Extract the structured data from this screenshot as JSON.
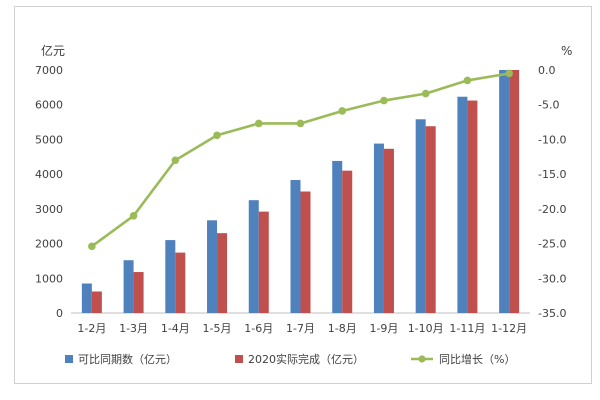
{
  "chart_data": {
    "type": "bar",
    "title": "",
    "left_unit": "亿元",
    "right_unit": "%",
    "categories": [
      "1-2月",
      "1-3月",
      "1-4月",
      "1-5月",
      "1-6月",
      "1-7月",
      "1-8月",
      "1-9月",
      "1-10月",
      "1-11月",
      "1-12月"
    ],
    "y_left": {
      "min": 0,
      "max": 7000,
      "step": 1000,
      "ticks": [
        "0",
        "1000",
        "2000",
        "3000",
        "4000",
        "5000",
        "6000",
        "7000"
      ]
    },
    "y_right": {
      "min": -35,
      "max": 0,
      "step": 5,
      "ticks": [
        "0.0",
        "-5.0",
        "-10.0",
        "-15.0",
        "-20.0",
        "-25.0",
        "-30.0",
        "-35.0"
      ]
    },
    "series": [
      {
        "name": "可比同期数（亿元）",
        "type": "bar",
        "axis": "left",
        "color": "#4f81bd",
        "values": [
          850,
          1520,
          2100,
          2670,
          3250,
          3830,
          4380,
          4880,
          5580,
          6230,
          7000
        ]
      },
      {
        "name": "2020实际完成（亿元）",
        "type": "bar",
        "axis": "left",
        "color": "#c0504d",
        "values": [
          620,
          1180,
          1740,
          2300,
          2920,
          3500,
          4100,
          4730,
          5380,
          6120,
          7000
        ]
      },
      {
        "name": "同比增长（%）",
        "type": "line",
        "axis": "right",
        "color": "#9bbb59",
        "values": [
          -25.4,
          -21.0,
          -13.0,
          -9.4,
          -7.7,
          -7.7,
          -5.9,
          -4.4,
          -3.4,
          -1.5,
          -0.5
        ]
      }
    ],
    "legend_position": "bottom",
    "grid": false
  }
}
